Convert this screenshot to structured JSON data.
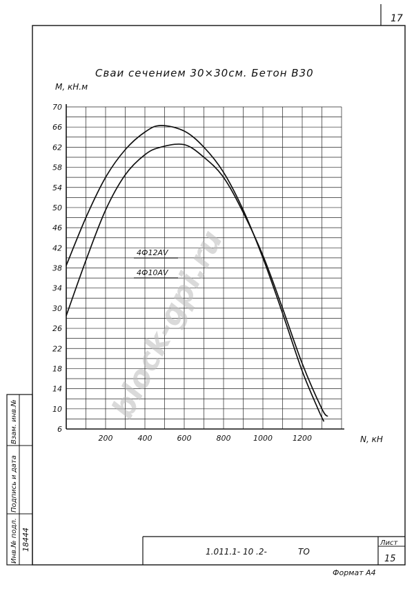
{
  "sheet": {
    "sheet_number_top": "17",
    "doc_code": "1.011.1- 10 .2-",
    "doc_suffix": "ТО",
    "list_label": "Лист",
    "list_number": "15",
    "format_label": "Формат А4",
    "side_stamp": [
      "Инв.№ подл.",
      "Подпись и дата",
      "Взам. инв.№"
    ],
    "inventory_number": "18444",
    "watermark": "block-gpi.ru"
  },
  "chart_data": {
    "type": "line",
    "title": "Сваи сечением 30×30см. Бетон В30",
    "xlabel": "N, кН",
    "ylabel": "М, кН.м",
    "xlim": [
      0,
      1400
    ],
    "ylim": [
      6,
      70
    ],
    "xticks": [
      200,
      400,
      600,
      800,
      1000,
      1200
    ],
    "yticks": [
      6,
      10,
      14,
      18,
      22,
      26,
      30,
      34,
      38,
      42,
      46,
      50,
      54,
      58,
      62,
      66,
      70
    ],
    "grid": true,
    "series": [
      {
        "name": "4Ф12АV",
        "x": [
          0,
          100,
          200,
          300,
          400,
          480,
          600,
          700,
          800,
          900,
          1000,
          1100,
          1200,
          1280,
          1310
        ],
        "y": [
          38.5,
          48,
          56,
          61.5,
          65,
          66.3,
          65.2,
          62,
          57,
          49.5,
          40,
          29,
          17.5,
          10,
          7.5
        ]
      },
      {
        "name": "4Ф10АV",
        "x": [
          0,
          100,
          200,
          300,
          400,
          480,
          600,
          700,
          800,
          900,
          1000,
          1100,
          1200,
          1300,
          1330
        ],
        "y": [
          28.5,
          39.5,
          49.5,
          56.5,
          60.5,
          62,
          62.5,
          60,
          56,
          49,
          40.5,
          30,
          19,
          10,
          8.5
        ]
      }
    ],
    "legend": [
      {
        "label": "4Ф12АV"
      },
      {
        "label": "4Ф10АV"
      }
    ],
    "legend_position": "left-middle"
  }
}
